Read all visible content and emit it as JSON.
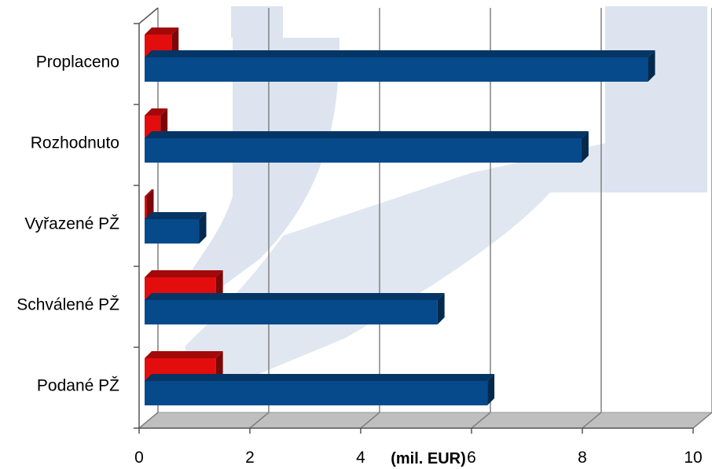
{
  "chart_data": {
    "type": "bar",
    "orientation": "horizontal",
    "style": "3d",
    "categories": [
      "Proplaceno",
      "Rozhodnuto",
      "Vyřazené PŽ",
      "Schválené PŽ",
      "Podané PŽ"
    ],
    "series": [
      {
        "color": "#E30D0D",
        "values": [
          0.5,
          0.3,
          0.05,
          1.3,
          1.3
        ]
      },
      {
        "color": "#064A8C",
        "values": [
          9.1,
          7.9,
          1.0,
          5.3,
          6.2
        ]
      }
    ],
    "xlabel": "(mil. EUR)",
    "xlim": [
      0,
      10
    ],
    "xticks": [
      "0",
      "2",
      "4",
      "6",
      "8",
      "10"
    ],
    "grid": true,
    "legend": "none"
  },
  "colors": {
    "watermark": "#DDE4F0",
    "floor": "#BFBFBF",
    "grid": "#808080"
  }
}
